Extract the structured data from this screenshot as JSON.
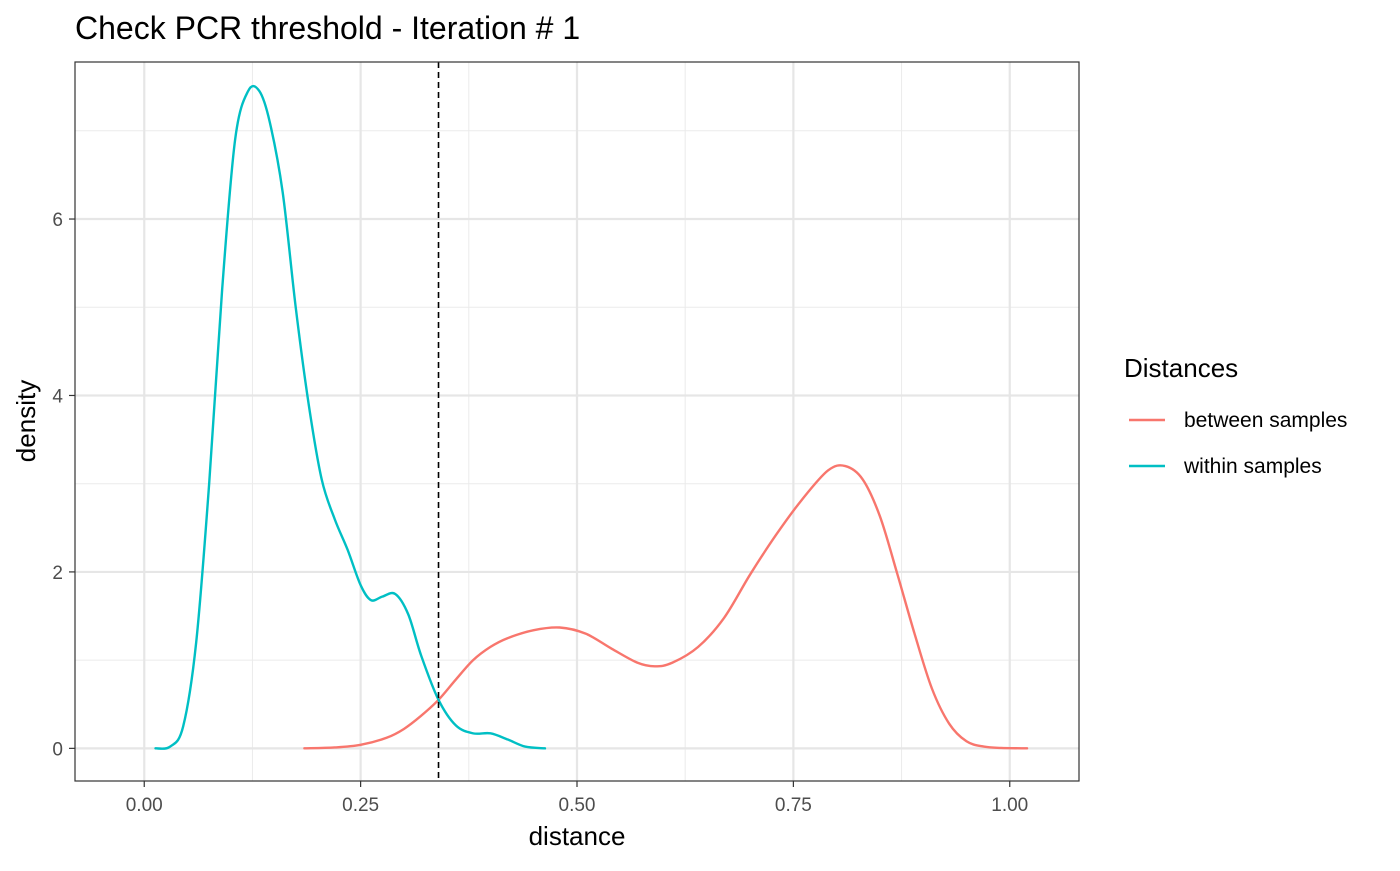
{
  "chart_data": {
    "type": "line",
    "title": "Check PCR threshold - Iteration # 1",
    "xlabel": "distance",
    "ylabel": "density",
    "xlim": [
      -0.08,
      1.08
    ],
    "ylim": [
      -0.37,
      7.78
    ],
    "x_ticks": [
      0,
      0.25,
      0.5,
      0.75,
      1.0
    ],
    "x_tick_labels": [
      "0.00",
      "0.25",
      "0.50",
      "0.75",
      "1.00"
    ],
    "y_ticks": [
      0,
      2,
      4,
      6
    ],
    "y_tick_labels": [
      "0",
      "2",
      "4",
      "6"
    ],
    "grid": true,
    "threshold": 0.34,
    "legend": {
      "title": "Distances",
      "position": "right",
      "entries": [
        "between samples",
        "within samples"
      ]
    },
    "series": [
      {
        "name": "between samples",
        "color": "#f8766d",
        "x": [
          0.185,
          0.22,
          0.25,
          0.28,
          0.3,
          0.32,
          0.34,
          0.36,
          0.38,
          0.4,
          0.42,
          0.45,
          0.48,
          0.51,
          0.54,
          0.57,
          0.59,
          0.61,
          0.64,
          0.67,
          0.7,
          0.73,
          0.76,
          0.79,
          0.81,
          0.83,
          0.85,
          0.87,
          0.89,
          0.91,
          0.93,
          0.95,
          0.97,
          0.99,
          1.02
        ],
        "y": [
          0.0,
          0.01,
          0.04,
          0.12,
          0.22,
          0.37,
          0.55,
          0.78,
          1.0,
          1.15,
          1.25,
          1.34,
          1.37,
          1.3,
          1.13,
          0.97,
          0.93,
          0.97,
          1.15,
          1.48,
          1.97,
          2.42,
          2.82,
          3.15,
          3.2,
          3.05,
          2.63,
          1.98,
          1.3,
          0.68,
          0.28,
          0.08,
          0.02,
          0.005,
          0.0
        ]
      },
      {
        "name": "within samples",
        "color": "#00bfc4",
        "x": [
          0.013,
          0.03,
          0.045,
          0.06,
          0.075,
          0.09,
          0.105,
          0.12,
          0.133,
          0.145,
          0.16,
          0.175,
          0.19,
          0.205,
          0.22,
          0.235,
          0.25,
          0.262,
          0.275,
          0.29,
          0.305,
          0.32,
          0.34,
          0.36,
          0.38,
          0.4,
          0.42,
          0.44,
          0.463
        ],
        "y": [
          0.0,
          0.02,
          0.25,
          1.2,
          3.0,
          5.2,
          6.9,
          7.45,
          7.45,
          7.1,
          6.3,
          5.0,
          3.9,
          3.05,
          2.6,
          2.25,
          1.85,
          1.68,
          1.72,
          1.75,
          1.52,
          1.05,
          0.55,
          0.26,
          0.17,
          0.17,
          0.1,
          0.02,
          0.0
        ]
      }
    ]
  }
}
